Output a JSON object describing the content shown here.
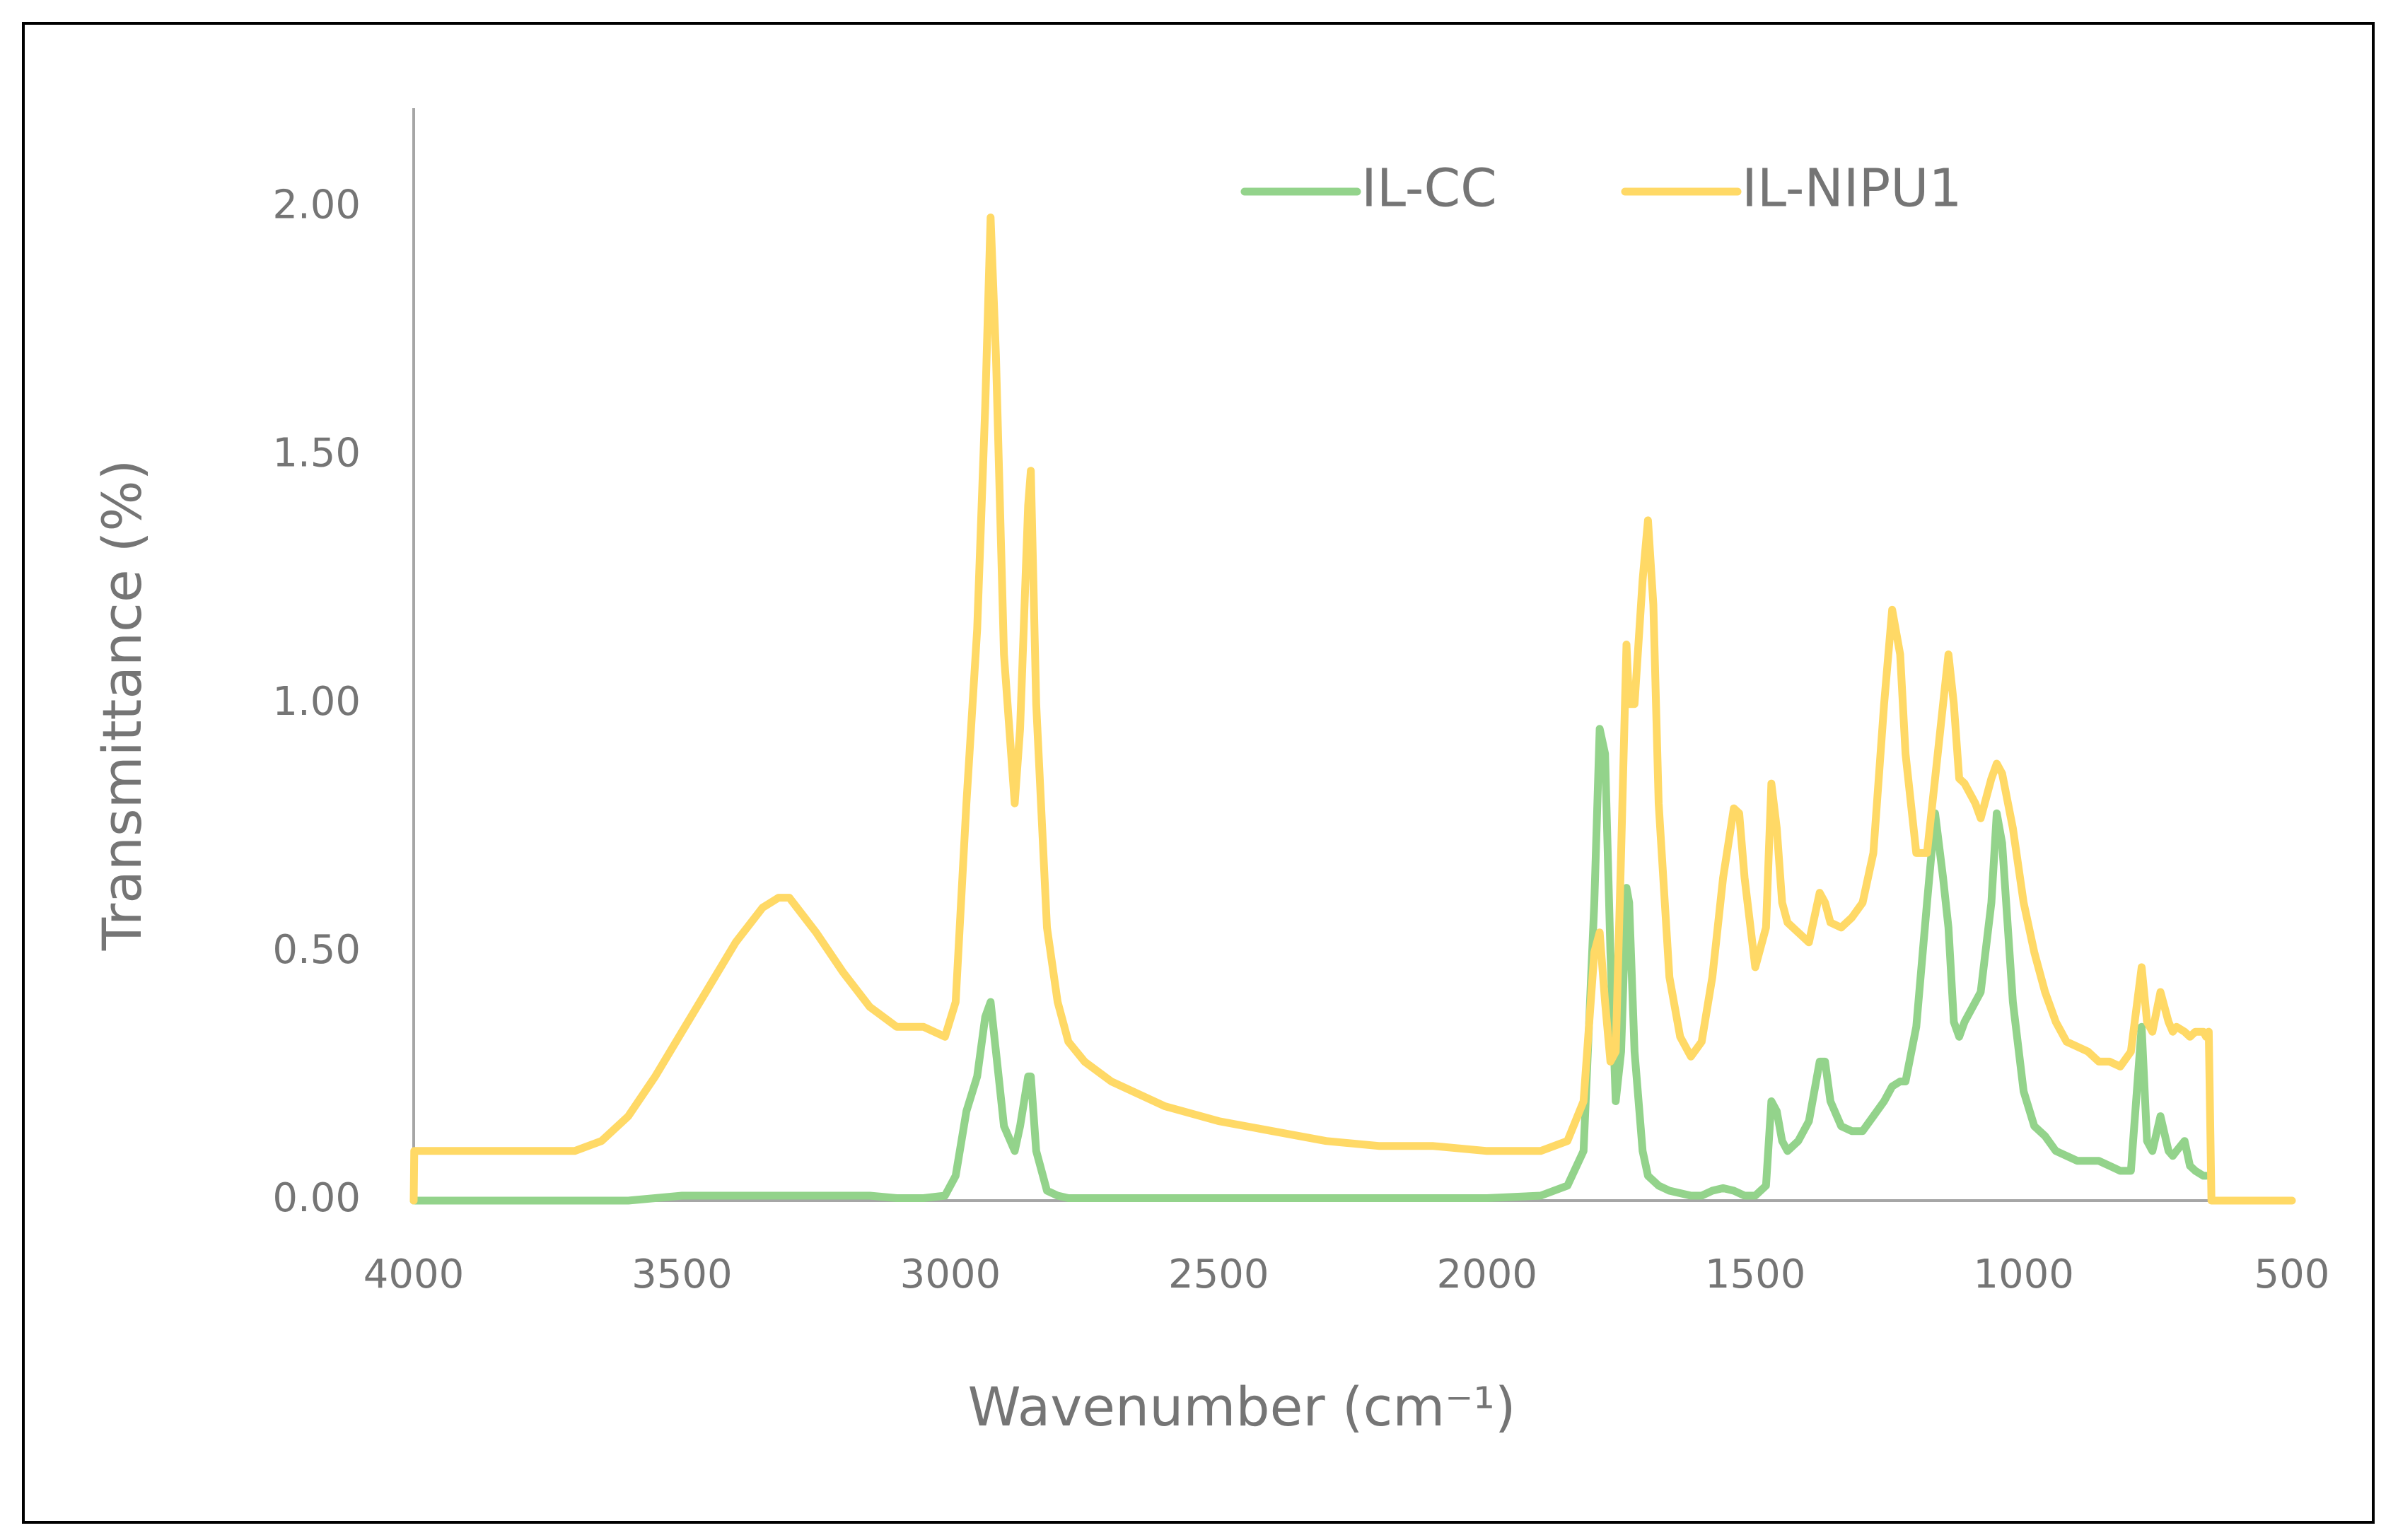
{
  "chart_data": {
    "type": "line",
    "xlabel": "Wavenumber (cm⁻¹)",
    "ylabel": "Transmittance (%)",
    "xlim": [
      4000,
      500
    ],
    "ylim": [
      0,
      2.2
    ],
    "xticks": [
      4000,
      3500,
      3000,
      2500,
      2000,
      1500,
      1000,
      500
    ],
    "yticks": [
      {
        "value": 0,
        "label": "0.00"
      },
      {
        "value": 0.5,
        "label": "0.50"
      },
      {
        "value": 1,
        "label": "1.00"
      },
      {
        "value": 1.5,
        "label": "1.50"
      },
      {
        "value": 2,
        "label": "2.00"
      }
    ],
    "grid": false,
    "legend": "top",
    "x": [
      4000,
      3999,
      3900,
      3800,
      3700,
      3650,
      3600,
      3550,
      3500,
      3450,
      3400,
      3350,
      3320,
      3300,
      3250,
      3200,
      3150,
      3100,
      3050,
      3010,
      2990,
      2970,
      2950,
      2935,
      2925,
      2915,
      2900,
      2880,
      2870,
      2855,
      2850,
      2840,
      2820,
      2800,
      2780,
      2750,
      2700,
      2600,
      2500,
      2400,
      2300,
      2200,
      2100,
      2000,
      1900,
      1850,
      1820,
      1800,
      1790,
      1780,
      1770,
      1760,
      1750,
      1740,
      1735,
      1725,
      1710,
      1700,
      1690,
      1680,
      1660,
      1640,
      1620,
      1600,
      1580,
      1560,
      1540,
      1530,
      1520,
      1500,
      1480,
      1470,
      1460,
      1450,
      1440,
      1420,
      1400,
      1380,
      1370,
      1360,
      1340,
      1320,
      1300,
      1280,
      1260,
      1245,
      1230,
      1220,
      1200,
      1180,
      1165,
      1150,
      1140,
      1130,
      1120,
      1110,
      1090,
      1080,
      1060,
      1050,
      1040,
      1020,
      1000,
      980,
      960,
      940,
      920,
      900,
      880,
      860,
      840,
      820,
      800,
      780,
      770,
      760,
      745,
      730,
      722,
      715,
      700,
      690,
      680,
      665,
      660,
      655,
      650,
      500
    ],
    "series": [
      {
        "name": "IL-CC",
        "color": "#93D38B",
        "values": [
          0,
          0,
          0,
          0,
          0,
          0,
          0,
          0.005,
          0.01,
          0.01,
          0.01,
          0.01,
          0.01,
          0.01,
          0.01,
          0.01,
          0.01,
          0.005,
          0.005,
          0.01,
          0.05,
          0.18,
          0.25,
          0.37,
          0.4,
          0.3,
          0.15,
          0.1,
          0.15,
          0.25,
          0.25,
          0.1,
          0.02,
          0.01,
          0.005,
          0.005,
          0.005,
          0.005,
          0.005,
          0.005,
          0.005,
          0.005,
          0.005,
          0.005,
          0.01,
          0.03,
          0.1,
          0.6,
          0.95,
          0.9,
          0.5,
          0.2,
          0.3,
          0.63,
          0.6,
          0.3,
          0.1,
          0.05,
          0.04,
          0.03,
          0.02,
          0.015,
          0.01,
          0.01,
          0.02,
          0.025,
          0.02,
          0.015,
          0.01,
          0.01,
          0.03,
          0.2,
          0.18,
          0.12,
          0.1,
          0.12,
          0.16,
          0.28,
          0.28,
          0.2,
          0.15,
          0.14,
          0.14,
          0.17,
          0.2,
          0.23,
          0.24,
          0.24,
          0.35,
          0.6,
          0.78,
          0.65,
          0.55,
          0.36,
          0.33,
          0.36,
          0.4,
          0.42,
          0.6,
          0.78,
          0.72,
          0.4,
          0.22,
          0.15,
          0.13,
          0.1,
          0.09,
          0.08,
          0.08,
          0.08,
          0.07,
          0.06,
          0.06,
          0.35,
          0.12,
          0.1,
          0.17,
          0.1,
          0.09,
          0.1,
          0.12,
          0.07,
          0.06,
          0.05,
          0.05,
          null,
          null,
          null
        ]
      },
      {
        "name": "IL-NIPU1",
        "color": "#FFD966",
        "values": [
          0,
          0.1,
          0.1,
          0.1,
          0.1,
          0.12,
          0.17,
          0.25,
          0.34,
          0.43,
          0.52,
          0.59,
          0.61,
          0.61,
          0.54,
          0.46,
          0.39,
          0.35,
          0.35,
          0.33,
          0.4,
          0.8,
          1.15,
          1.6,
          1.98,
          1.7,
          1.1,
          0.8,
          0.95,
          1.4,
          1.47,
          1.0,
          0.55,
          0.4,
          0.32,
          0.28,
          0.24,
          0.19,
          0.16,
          0.14,
          0.12,
          0.11,
          0.11,
          0.1,
          0.1,
          0.12,
          0.2,
          0.5,
          0.54,
          0.4,
          0.28,
          0.3,
          0.7,
          1.12,
          1.0,
          1.0,
          1.25,
          1.37,
          1.2,
          0.8,
          0.45,
          0.33,
          0.29,
          0.32,
          0.45,
          0.65,
          0.79,
          0.78,
          0.65,
          0.47,
          0.55,
          0.84,
          0.75,
          0.6,
          0.56,
          0.54,
          0.52,
          0.62,
          0.6,
          0.56,
          0.55,
          0.57,
          0.6,
          0.7,
          1.0,
          1.19,
          1.1,
          0.9,
          0.7,
          0.7,
          0.85,
          1.0,
          1.1,
          1.0,
          0.85,
          0.84,
          0.8,
          0.77,
          0.85,
          0.88,
          0.86,
          0.75,
          0.6,
          0.5,
          0.42,
          0.36,
          0.32,
          0.31,
          0.3,
          0.28,
          0.28,
          0.27,
          0.3,
          0.47,
          0.36,
          0.34,
          0.42,
          0.36,
          0.34,
          0.35,
          0.34,
          0.33,
          0.34,
          0.34,
          0.33,
          0.34,
          0,
          0
        ]
      }
    ]
  }
}
